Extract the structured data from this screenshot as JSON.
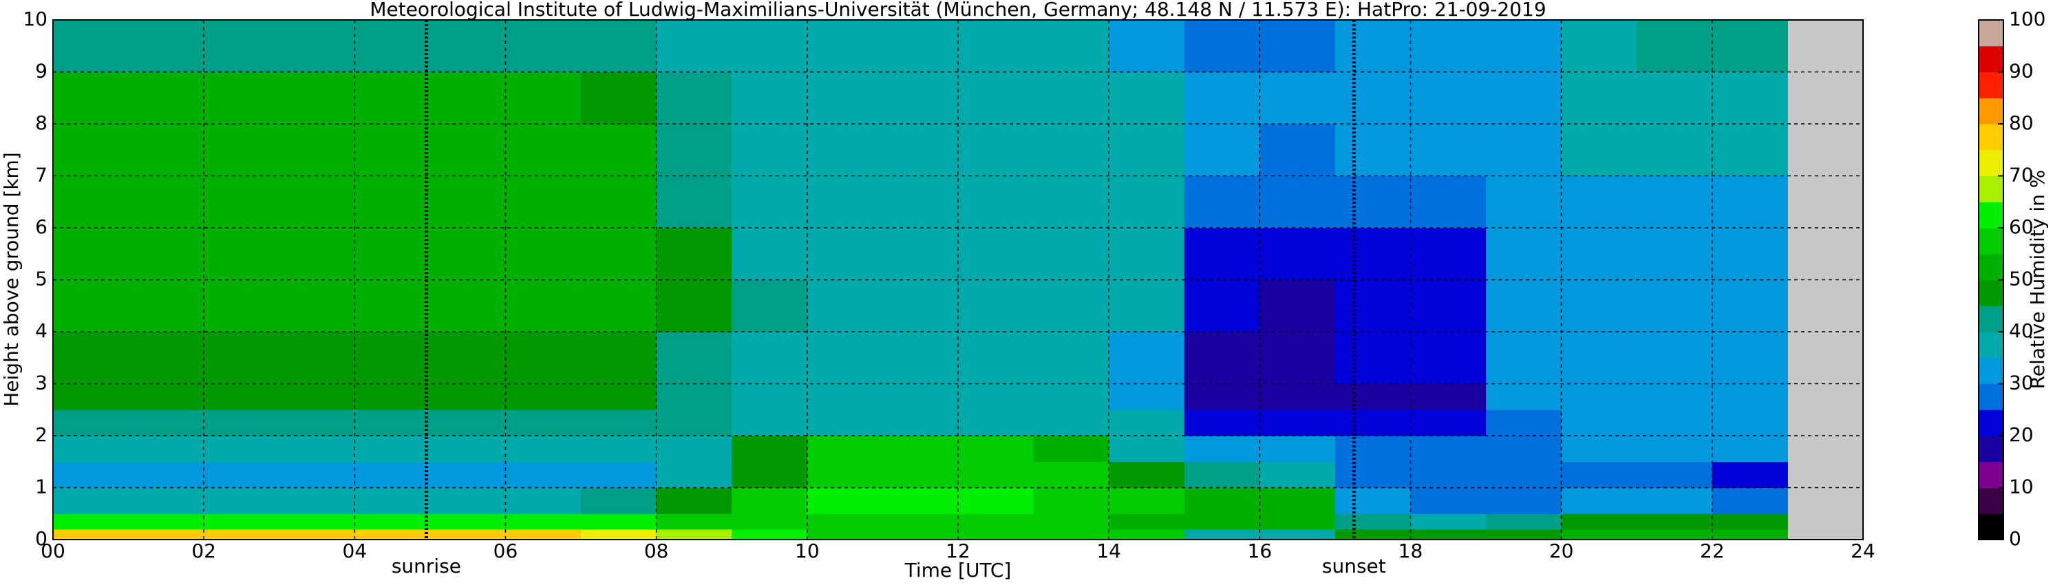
{
  "chart_data": {
    "type": "heatmap",
    "title": "Meteorological Institute of Ludwig-Maximilians-Universität (München, Germany; 48.148 N / 11.573 E):    HatPro: 21-09-2019",
    "xlabel": "Time [UTC]",
    "ylabel": "Height above ground [km]",
    "colorbar_label": "Relative Humidity in %",
    "x": [
      0,
      1,
      2,
      3,
      4,
      5,
      6,
      7,
      8,
      9,
      10,
      11,
      12,
      13,
      14,
      15,
      16,
      17,
      18,
      19,
      20,
      21,
      22,
      23
    ],
    "y": [
      0,
      0.2,
      0.5,
      1,
      1.5,
      2,
      2.5,
      3,
      4,
      5,
      6,
      7,
      8,
      9,
      10
    ],
    "values": [
      [
        76,
        62,
        38,
        32,
        36,
        44,
        48,
        47,
        52,
        53,
        53,
        53,
        51,
        42
      ],
      [
        77,
        62,
        38,
        32,
        36,
        44,
        48,
        47,
        52,
        53,
        53,
        53,
        51,
        42
      ],
      [
        76,
        62,
        38,
        32,
        36,
        44,
        48,
        47,
        52,
        53,
        53,
        53,
        51,
        42
      ],
      [
        76,
        62,
        38,
        32,
        36,
        44,
        48,
        47,
        52,
        53,
        53,
        53,
        51,
        42
      ],
      [
        77,
        62,
        38,
        32,
        36,
        44,
        48,
        47,
        52,
        53,
        53,
        53,
        51,
        42
      ],
      [
        77,
        62,
        38,
        32,
        36,
        44,
        48,
        47,
        52,
        53,
        53,
        53,
        51,
        42
      ],
      [
        76,
        62,
        38,
        32,
        36,
        44,
        48,
        47,
        52,
        53,
        53,
        53,
        51,
        42
      ],
      [
        72,
        60,
        40,
        33,
        37,
        42,
        45,
        46,
        50,
        51,
        51,
        51,
        49,
        42
      ],
      [
        66,
        58,
        45,
        38,
        38,
        40,
        42,
        43,
        47,
        46,
        44,
        43,
        42,
        39
      ],
      [
        60,
        58,
        55,
        48,
        46,
        38,
        37,
        37,
        40,
        39,
        38,
        38,
        38,
        37
      ],
      [
        58,
        57,
        60,
        59,
        56,
        38,
        37,
        37,
        37,
        37,
        38,
        38,
        37,
        36
      ],
      [
        58,
        57,
        60,
        59,
        56,
        38,
        37,
        37,
        37,
        37,
        38,
        38,
        37,
        36
      ],
      [
        58,
        57,
        60,
        59,
        56,
        38,
        37,
        37,
        37,
        37,
        38,
        38,
        37,
        36
      ],
      [
        57,
        56,
        58,
        57,
        54,
        38,
        37,
        37,
        37,
        37,
        37,
        37,
        36,
        36
      ],
      [
        55,
        54,
        55,
        45,
        38,
        35,
        34,
        34,
        35,
        35,
        35,
        35,
        35,
        34
      ],
      [
        36,
        52,
        50,
        40,
        34,
        22,
        18,
        18,
        20,
        21,
        26,
        30,
        30,
        28
      ],
      [
        36,
        53,
        52,
        38,
        33,
        22,
        18,
        18,
        19,
        20,
        25,
        29,
        30,
        29
      ],
      [
        46,
        40,
        30,
        27,
        25,
        20,
        19,
        20,
        21,
        23,
        28,
        31,
        31,
        31
      ],
      [
        47,
        38,
        28,
        26,
        25,
        20,
        19,
        20,
        22,
        24,
        29,
        31,
        31,
        31
      ],
      [
        48,
        40,
        29,
        28,
        29,
        28,
        30,
        31,
        31,
        31,
        32,
        32,
        32,
        32
      ],
      [
        52,
        45,
        31,
        29,
        32,
        33,
        33,
        33,
        33,
        33,
        34,
        35,
        38,
        39
      ],
      [
        52,
        46,
        30,
        27,
        32,
        33,
        33,
        33,
        33,
        33,
        34,
        36,
        39,
        40
      ],
      [
        53,
        46,
        29,
        23,
        31,
        33,
        33,
        33,
        33,
        33,
        34,
        36,
        39,
        40
      ]
    ],
    "xlim": [
      0,
      24
    ],
    "ylim": [
      0,
      10
    ],
    "clim": [
      0,
      100
    ],
    "xticks": [
      {
        "value": 0,
        "label": "00"
      },
      {
        "value": 2,
        "label": "02"
      },
      {
        "value": 4,
        "label": "04"
      },
      {
        "value": 6,
        "label": "06"
      },
      {
        "value": 8,
        "label": "08"
      },
      10,
      12,
      14,
      16,
      18,
      20,
      22,
      24
    ],
    "yticks": [
      0,
      1,
      2,
      3,
      4,
      5,
      6,
      7,
      8,
      9,
      10
    ],
    "cticks": [
      0,
      10,
      20,
      30,
      40,
      50,
      60,
      70,
      80,
      90,
      100
    ],
    "colormap": [
      "#000000",
      "#3a0046",
      "#7d0090",
      "#1a00a0",
      "#0000d8",
      "#0070dd",
      "#0099dd",
      "#00aaaa",
      "#00a088",
      "#009900",
      "#00b000",
      "#00cc00",
      "#00ee00",
      "#aaee00",
      "#eeee00",
      "#ffcc00",
      "#ff9900",
      "#ff2000",
      "#dd0000",
      "#c8a898"
    ],
    "missing_color": "#c8c8c8",
    "grid": true,
    "annotations": [
      {
        "text": "sunrise",
        "x": 4.95
      },
      {
        "text": "sunset",
        "x": 17.25
      }
    ]
  }
}
